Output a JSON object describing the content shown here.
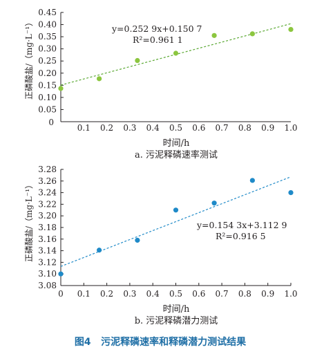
{
  "figure_caption": "图4   污泥释磷速率和释磷潜力测试结果",
  "colors": {
    "panel_a_points": "#8cc63f",
    "panel_a_trend": "#5aa832",
    "panel_b_points": "#1f8ac8",
    "panel_b_trend": "#1f8ac8",
    "axis": "#231f20",
    "caption": "#1f6fa6"
  },
  "chart_data": [
    {
      "type": "scatter",
      "caption": "a. 污泥释磷速率测试",
      "xlabel": "时间/h",
      "ylabel": "正磷酸盐/（mg·L⁻¹）",
      "xlim": [
        0,
        1.0
      ],
      "ylim": [
        0,
        0.45
      ],
      "xticks": [
        "0.1",
        "0.2",
        "0.3",
        "0.4",
        "0.5",
        "0.6",
        "0.7",
        "0.8",
        "0.9",
        "1.0"
      ],
      "yticks": [
        "0.05",
        "0.10",
        "0.15",
        "0.20",
        "0.25",
        "0.30",
        "0.35",
        "0.40",
        "0.45"
      ],
      "origin_label": "0",
      "points": [
        {
          "x": 0,
          "y": 0.137
        },
        {
          "x": 0.167,
          "y": 0.177
        },
        {
          "x": 0.333,
          "y": 0.252
        },
        {
          "x": 0.5,
          "y": 0.282
        },
        {
          "x": 0.667,
          "y": 0.355
        },
        {
          "x": 0.833,
          "y": 0.362
        },
        {
          "x": 1.0,
          "y": 0.38
        }
      ],
      "trendline": {
        "slope": 0.2529,
        "intercept": 0.1507
      },
      "equation": "y=0.252 9x+0.150 7",
      "r2": "R²=0.961 1"
    },
    {
      "type": "scatter",
      "caption": "b. 污泥释磷潜力测试",
      "xlabel": "时间/h",
      "ylabel": "正磷酸盐/（mg·L⁻¹）",
      "xlim": [
        0,
        1.0
      ],
      "ylim": [
        3.08,
        3.28
      ],
      "xticks": [
        "0",
        "0.1",
        "0.2",
        "0.3",
        "0.4",
        "0.5",
        "0.6",
        "0.7",
        "0.8",
        "0.9",
        "1.0"
      ],
      "yticks": [
        "3.08",
        "3.10",
        "3.12",
        "3.14",
        "3.16",
        "3.18",
        "3.20",
        "3.22",
        "3.24",
        "3.26",
        "3.28"
      ],
      "points": [
        {
          "x": 0,
          "y": 3.1
        },
        {
          "x": 0.167,
          "y": 3.141
        },
        {
          "x": 0.333,
          "y": 3.158
        },
        {
          "x": 0.5,
          "y": 3.21
        },
        {
          "x": 0.667,
          "y": 3.222
        },
        {
          "x": 0.833,
          "y": 3.261
        },
        {
          "x": 1.0,
          "y": 3.24
        }
      ],
      "trendline": {
        "slope": 0.1543,
        "intercept": 3.1129
      },
      "equation": "y=0.154 3x+3.112 9",
      "r2": "R²=0.916 5"
    }
  ]
}
